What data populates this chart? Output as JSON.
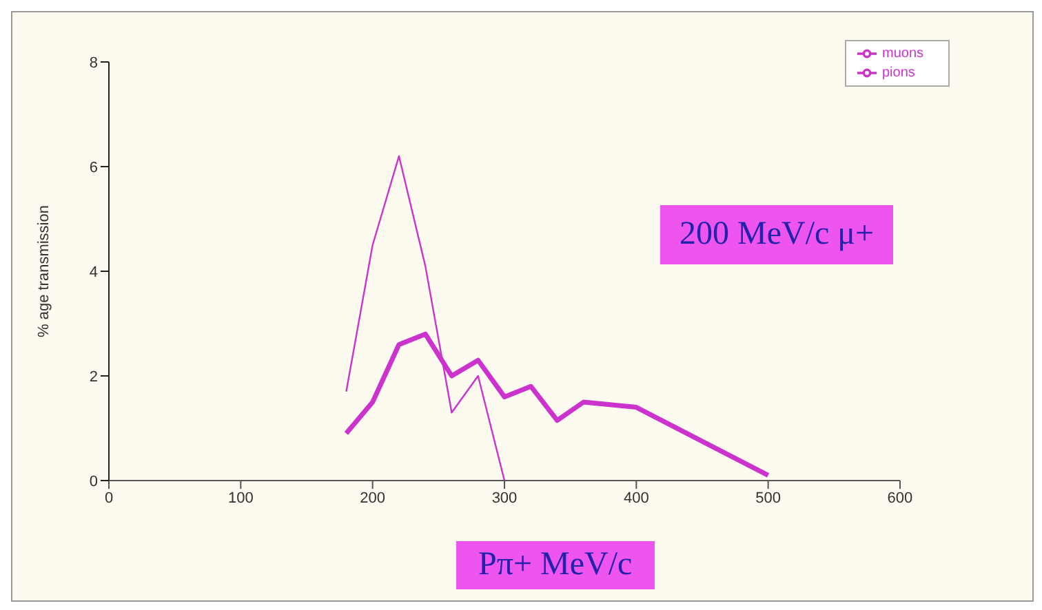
{
  "chart_data": {
    "type": "line",
    "xlabel": "Pπ+ MeV/c",
    "ylabel": "% age transmission",
    "annotations": [
      "200 MeV/c μ+"
    ],
    "xlim": [
      0,
      600
    ],
    "xticks": [
      0,
      100,
      200,
      300,
      400,
      500,
      600
    ],
    "ylim": [
      0,
      8
    ],
    "yticks": [
      0,
      2,
      4,
      6,
      8
    ],
    "grid": false,
    "legend": "top right",
    "marker": "none",
    "line_style": "solid",
    "series": [
      {
        "name": "muons",
        "color": "#cc33cc",
        "x": [
          180,
          200,
          220,
          240,
          260,
          280,
          300,
          320,
          340,
          360,
          400,
          500
        ],
        "values": [
          0.9,
          1.5,
          2.6,
          2.8,
          2.0,
          2.3,
          1.6,
          1.8,
          1.15,
          1.5,
          1.4,
          0.1
        ]
      },
      {
        "name": "pions",
        "color": "#cc33cc",
        "x": [
          180,
          200,
          220,
          240,
          260,
          280,
          300
        ],
        "values": [
          1.7,
          4.5,
          6.2,
          4.1,
          1.3,
          2.0,
          0
        ]
      }
    ]
  }
}
